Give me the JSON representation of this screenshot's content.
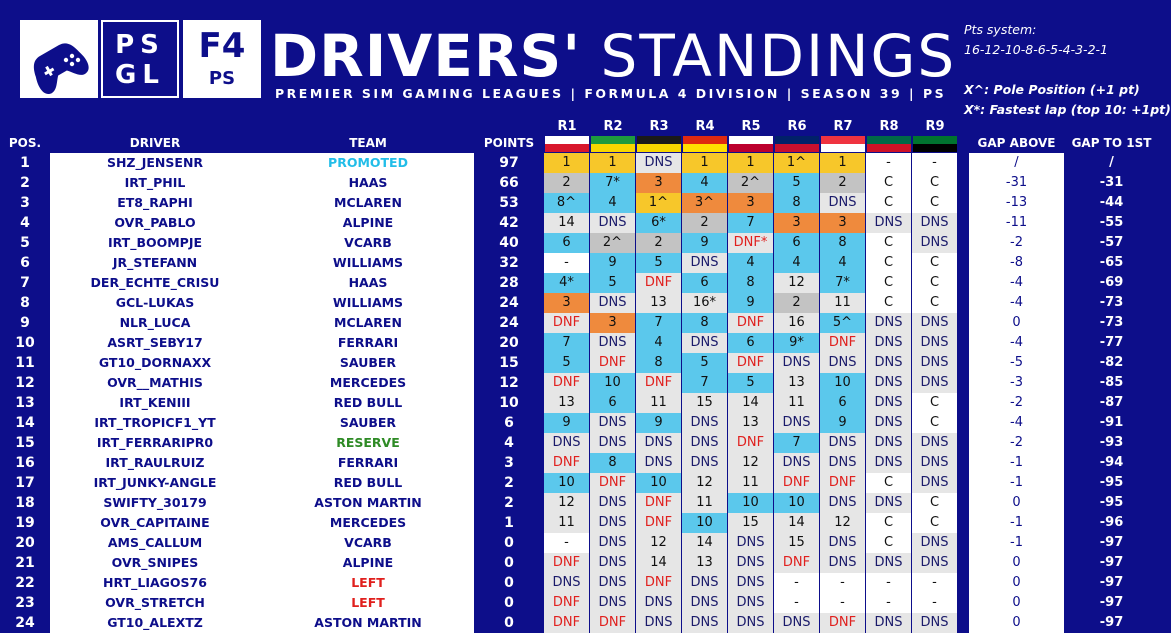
{
  "header": {
    "logo_psgl": [
      "PS",
      "GL"
    ],
    "logo_f4": [
      "F4",
      "PS"
    ],
    "title_bold": "DRIVERS'",
    "title_light": "STANDINGS",
    "subtitle": "PREMIER SIM GAMING LEAGUES | FORMULA 4 DIVISION | SEASON 39 | PS"
  },
  "points_system": {
    "label": "Pts system:",
    "values": "16-12-10-8-6-5-4-3-2-1",
    "pole_note": "X^: Pole Position (+1 pt)",
    "fastest_note": "X*: Fastest lap (top 10: +1pt)"
  },
  "columns": {
    "pos": "POS.",
    "driver": "DRIVER",
    "team": "TEAM",
    "points": "POINTS",
    "rounds": [
      "R1",
      "R2",
      "R3",
      "R4",
      "R5",
      "R6",
      "R7",
      "R8",
      "R9"
    ],
    "gap_above": "GAP ABOVE",
    "gap_first": "GAP TO 1ST"
  },
  "colors": {
    "background": "#0d0e8a",
    "p1": "#f7c72a",
    "p2": "#c3c3c3",
    "p3": "#ef8a3d",
    "points_finish": "#5bc8ec",
    "no_points": "#e6e6e6",
    "dnf_text": "#e0201e",
    "promoted": "#22bde8",
    "reserve": "#2e8b25",
    "left": "#e0201e"
  },
  "rows": [
    {
      "pos": "1",
      "driver": "SHZ_JENSENR",
      "team": "PROMOTED",
      "team_kind": "promoted",
      "points": "97",
      "r": [
        "1",
        "1",
        "DNS",
        "1",
        "1",
        "1^",
        "1",
        "-",
        "-"
      ],
      "gap_above": "/",
      "gap_first": "/"
    },
    {
      "pos": "2",
      "driver": "IRT_PHIL",
      "team": "HAAS",
      "points": "66",
      "r": [
        "2",
        "7*",
        "3",
        "4",
        "2^",
        "5",
        "2",
        "C",
        "C"
      ],
      "gap_above": "-31",
      "gap_first": "-31"
    },
    {
      "pos": "3",
      "driver": "ET8_RAPHI",
      "team": "MCLAREN",
      "points": "53",
      "r": [
        "8^",
        "4",
        "1^",
        "3^",
        "3",
        "8",
        "DNS",
        "C",
        "C"
      ],
      "gap_above": "-13",
      "gap_first": "-44"
    },
    {
      "pos": "4",
      "driver": "OVR_PABLO",
      "team": "ALPINE",
      "points": "42",
      "r": [
        "14",
        "DNS",
        "6*",
        "2",
        "7",
        "3",
        "3",
        "DNS",
        "DNS"
      ],
      "gap_above": "-11",
      "gap_first": "-55"
    },
    {
      "pos": "5",
      "driver": "IRT_BOOMPJE",
      "team": "VCARB",
      "points": "40",
      "r": [
        "6",
        "2^",
        "2",
        "9",
        "DNF*",
        "6",
        "8",
        "C",
        "DNS"
      ],
      "gap_above": "-2",
      "gap_first": "-57"
    },
    {
      "pos": "6",
      "driver": "JR_STEFANN",
      "team": "WILLIAMS",
      "points": "32",
      "r": [
        "-",
        "9",
        "5",
        "DNS",
        "4",
        "4",
        "4",
        "C",
        "C"
      ],
      "gap_above": "-8",
      "gap_first": "-65"
    },
    {
      "pos": "7",
      "driver": "DER_ECHTE_CRISU",
      "team": "HAAS",
      "points": "28",
      "r": [
        "4*",
        "5",
        "DNF",
        "6",
        "8",
        "12",
        "7*",
        "C",
        "C"
      ],
      "gap_above": "-4",
      "gap_first": "-69"
    },
    {
      "pos": "8",
      "driver": "GCL-LUKAS",
      "team": "WILLIAMS",
      "points": "24",
      "r": [
        "3",
        "DNS",
        "13",
        "16*",
        "9",
        "2",
        "11",
        "C",
        "C"
      ],
      "gap_above": "-4",
      "gap_first": "-73"
    },
    {
      "pos": "9",
      "driver": "NLR_LUCA",
      "team": "MCLAREN",
      "points": "24",
      "r": [
        "DNF",
        "3",
        "7",
        "8",
        "DNF",
        "16",
        "5^",
        "DNS",
        "DNS"
      ],
      "gap_above": "0",
      "gap_first": "-73"
    },
    {
      "pos": "10",
      "driver": "ASRT_SEBY17",
      "team": "FERRARI",
      "points": "20",
      "r": [
        "7",
        "DNS",
        "4",
        "DNS",
        "6",
        "9*",
        "DNF",
        "DNS",
        "DNS"
      ],
      "gap_above": "-4",
      "gap_first": "-77"
    },
    {
      "pos": "11",
      "driver": "GT10_DORNAXX",
      "team": "SAUBER",
      "points": "15",
      "r": [
        "5",
        "DNF",
        "8",
        "5",
        "DNF",
        "DNS",
        "DNS",
        "DNS",
        "DNS"
      ],
      "gap_above": "-5",
      "gap_first": "-82"
    },
    {
      "pos": "12",
      "driver": "OVR__MATHIS",
      "team": "MERCEDES",
      "points": "12",
      "r": [
        "DNF",
        "10",
        "DNF",
        "7",
        "5",
        "13",
        "10",
        "DNS",
        "DNS"
      ],
      "gap_above": "-3",
      "gap_first": "-85"
    },
    {
      "pos": "13",
      "driver": "IRT_KENIII",
      "team": "RED BULL",
      "points": "10",
      "r": [
        "13",
        "6",
        "11",
        "15",
        "14",
        "11",
        "6",
        "DNS",
        "C"
      ],
      "gap_above": "-2",
      "gap_first": "-87"
    },
    {
      "pos": "14",
      "driver": "IRT_TROPICF1_YT",
      "team": "SAUBER",
      "points": "6",
      "r": [
        "9",
        "DNS",
        "9",
        "DNS",
        "13",
        "DNS",
        "9",
        "DNS",
        "C"
      ],
      "gap_above": "-4",
      "gap_first": "-91"
    },
    {
      "pos": "15",
      "driver": "IRT_FERRARIPR0",
      "team": "RESERVE",
      "team_kind": "reserve",
      "points": "4",
      "r": [
        "DNS",
        "DNS",
        "DNS",
        "DNS",
        "DNF",
        "7",
        "DNS",
        "DNS",
        "DNS"
      ],
      "gap_above": "-2",
      "gap_first": "-93"
    },
    {
      "pos": "16",
      "driver": "IRT_RAULRUIZ",
      "team": "FERRARI",
      "points": "3",
      "r": [
        "DNF",
        "8",
        "DNS",
        "DNS",
        "12",
        "DNS",
        "DNS",
        "DNS",
        "DNS"
      ],
      "gap_above": "-1",
      "gap_first": "-94"
    },
    {
      "pos": "17",
      "driver": "IRT_JUNKY-ANGLE",
      "team": "RED BULL",
      "points": "2",
      "r": [
        "10",
        "DNF",
        "10",
        "12",
        "11",
        "DNF",
        "DNF",
        "C",
        "DNS"
      ],
      "gap_above": "-1",
      "gap_first": "-95"
    },
    {
      "pos": "18",
      "driver": "SWIFTY_30179",
      "team": "ASTON MARTIN",
      "points": "2",
      "r": [
        "12",
        "DNS",
        "DNF",
        "11",
        "10",
        "10",
        "DNS",
        "DNS",
        "C"
      ],
      "gap_above": "0",
      "gap_first": "-95"
    },
    {
      "pos": "19",
      "driver": "OVR_CAPITAINE",
      "team": "MERCEDES",
      "points": "1",
      "r": [
        "11",
        "DNS",
        "DNF",
        "10",
        "15",
        "14",
        "12",
        "C",
        "C"
      ],
      "gap_above": "-1",
      "gap_first": "-96"
    },
    {
      "pos": "20",
      "driver": "AMS_CALLUM",
      "team": "VCARB",
      "points": "0",
      "r": [
        "-",
        "DNS",
        "12",
        "14",
        "DNS",
        "15",
        "DNS",
        "C",
        "DNS"
      ],
      "gap_above": "-1",
      "gap_first": "-97"
    },
    {
      "pos": "21",
      "driver": "OVR_SNIPES",
      "team": "ALPINE",
      "points": "0",
      "r": [
        "DNF",
        "DNS",
        "14",
        "13",
        "DNS",
        "DNF",
        "DNS",
        "DNS",
        "DNS"
      ],
      "gap_above": "0",
      "gap_first": "-97"
    },
    {
      "pos": "22",
      "driver": "HRT_LIAGOS76",
      "team": "LEFT",
      "team_kind": "left",
      "points": "0",
      "r": [
        "DNS",
        "DNS",
        "DNF",
        "DNS",
        "DNS",
        "-",
        "-",
        "-",
        "-"
      ],
      "gap_above": "0",
      "gap_first": "-97"
    },
    {
      "pos": "23",
      "driver": "OVR_STRETCH",
      "team": "LEFT",
      "team_kind": "left",
      "points": "0",
      "r": [
        "DNF",
        "DNS",
        "DNS",
        "DNS",
        "DNS",
        "-",
        "-",
        "-",
        "-"
      ],
      "gap_above": "0",
      "gap_first": "-97"
    },
    {
      "pos": "24",
      "driver": "GT10_ALEXTZ",
      "team": "ASTON MARTIN",
      "points": "0",
      "r": [
        "DNF",
        "DNF",
        "DNS",
        "DNS",
        "DNS",
        "DNS",
        "DNF",
        "DNS",
        "DNS"
      ],
      "gap_above": "0",
      "gap_first": "-97"
    }
  ]
}
